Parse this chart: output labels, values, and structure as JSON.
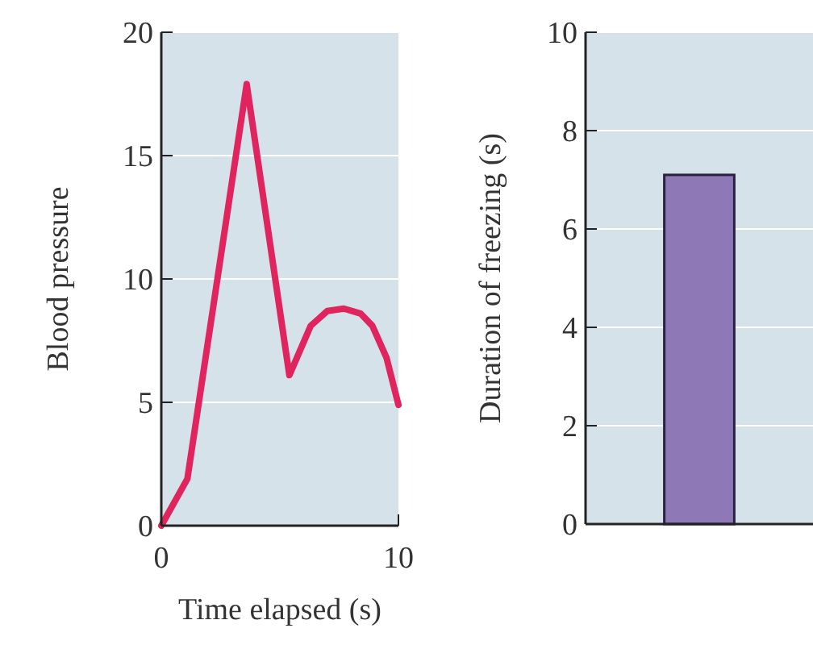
{
  "chart_data": [
    {
      "type": "line",
      "xlabel": "Time elapsed (s)",
      "ylabel": "Blood pressure",
      "x": [
        0,
        1.1,
        3.6,
        5.4,
        6.3,
        7.0,
        7.7,
        8.4,
        8.9,
        9.5,
        10
      ],
      "series": [
        {
          "color": "#e0245e",
          "values": [
            0,
            1.9,
            17.9,
            6.1,
            8.1,
            8.7,
            8.8,
            8.6,
            8.1,
            6.8,
            4.9
          ]
        }
      ],
      "xlim": [
        0,
        10
      ],
      "xticks": [
        0,
        10
      ],
      "ylim": [
        0,
        20
      ],
      "yticks": [
        0,
        5,
        10,
        15,
        20
      ],
      "grid": "y",
      "marker": "none",
      "line_style": "solid"
    },
    {
      "type": "bar",
      "ylabel": "Duration of freezing (s)",
      "categories": [
        null
      ],
      "values": [
        7.1
      ],
      "color": "#8e78b5",
      "ylim": [
        0,
        10
      ],
      "yticks": [
        0,
        2,
        4,
        6,
        8,
        10
      ],
      "grid": "y"
    }
  ]
}
